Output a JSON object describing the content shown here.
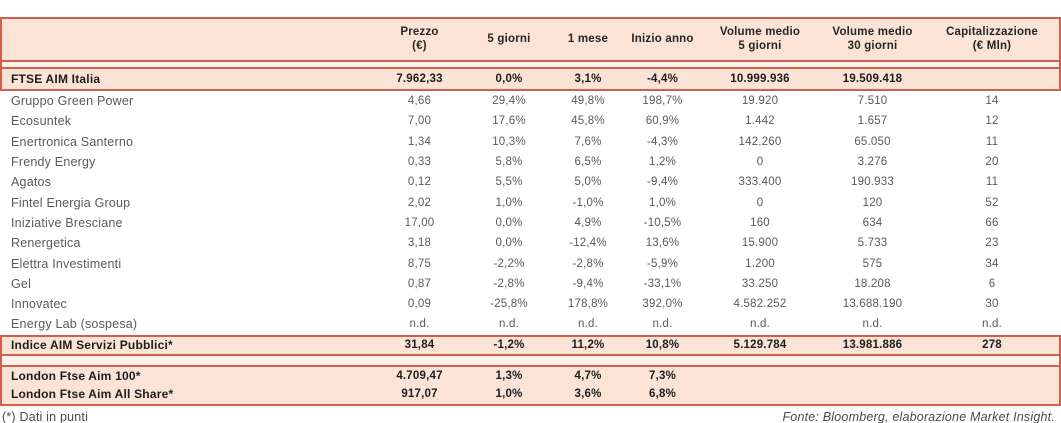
{
  "colors": {
    "border_red": "#d0604d",
    "section_peach": "#fbe4d5",
    "spacer_peach": "#fdf2ea",
    "text_dark": "#1d1d1d",
    "text_gray": "#5a5a5a"
  },
  "table": {
    "columns": [
      {
        "key": "name",
        "lines": []
      },
      {
        "key": "prezzo",
        "lines": [
          "Prezzo",
          "(€)"
        ]
      },
      {
        "key": "cinque-giorni",
        "lines": [
          "5 giorni"
        ]
      },
      {
        "key": "un-mese",
        "lines": [
          "1 mese"
        ]
      },
      {
        "key": "inizio-anno",
        "lines": [
          "Inizio anno"
        ]
      },
      {
        "key": "volume-medio-5-giorni",
        "lines": [
          "Volume medio",
          "5 giorni"
        ]
      },
      {
        "key": "volume-medio-30-giorni",
        "lines": [
          "Volume medio",
          "30 giorni"
        ]
      },
      {
        "key": "capitalizzazione",
        "lines": [
          "Capitalizzazione",
          "(€ Mln)"
        ]
      }
    ],
    "ftse_aim_row": {
      "name": "FTSE AIM Italia",
      "values": [
        "7.962,33",
        "0,0%",
        "3,1%",
        "-4,4%",
        "10.999.936",
        "19.509.418",
        ""
      ]
    },
    "rows": [
      {
        "name": "Gruppo Green Power",
        "values": [
          "4,66",
          "29,4%",
          "49,8%",
          "198,7%",
          "19.920",
          "7.510",
          "14"
        ]
      },
      {
        "name": "Ecosuntek",
        "values": [
          "7,00",
          "17,6%",
          "45,8%",
          "60,9%",
          "1.442",
          "1.657",
          "12"
        ]
      },
      {
        "name": "Enertronica Santerno",
        "values": [
          "1,34",
          "10,3%",
          "7,6%",
          "-4,3%",
          "142.260",
          "65.050",
          "11"
        ]
      },
      {
        "name": "Frendy Energy",
        "values": [
          "0,33",
          "5,8%",
          "6,5%",
          "1,2%",
          "0",
          "3.276",
          "20"
        ]
      },
      {
        "name": "Agatos",
        "values": [
          "0,12",
          "5,5%",
          "5,0%",
          "-9,4%",
          "333.400",
          "190.933",
          "11"
        ]
      },
      {
        "name": "Fintel Energia Group",
        "values": [
          "2,02",
          "1,0%",
          "-1,0%",
          "1,0%",
          "0",
          "120",
          "52"
        ]
      },
      {
        "name": "Iniziative Bresciane",
        "values": [
          "17,00",
          "0,0%",
          "4,9%",
          "-10,5%",
          "160",
          "634",
          "66"
        ]
      },
      {
        "name": "Renergetica",
        "values": [
          "3,18",
          "0,0%",
          "-12,4%",
          "13,6%",
          "15.900",
          "5.733",
          "23"
        ]
      },
      {
        "name": "Elettra Investimenti",
        "values": [
          "8,75",
          "-2,2%",
          "-2,8%",
          "-5,9%",
          "1.200",
          "575",
          "34"
        ]
      },
      {
        "name": "Gel",
        "values": [
          "0,87",
          "-2,8%",
          "-9,4%",
          "-33,1%",
          "33.250",
          "18.208",
          "6"
        ]
      },
      {
        "name": "Innovatec",
        "values": [
          "0,09",
          "-25,8%",
          "178,8%",
          "392,0%",
          "4.582.252",
          "13.688.190",
          "30"
        ]
      },
      {
        "name": "Energy Lab (sospesa)",
        "values": [
          "n.d.",
          "n.d.",
          "n.d.",
          "n.d.",
          "n.d.",
          "n.d.",
          "n.d."
        ]
      }
    ],
    "aim_servizi_row": {
      "name": "Indice AIM Servizi Pubblici*",
      "values": [
        "31,84",
        "-1,2%",
        "11,2%",
        "10,8%",
        "5.129.784",
        "13.981.886",
        "278"
      ]
    },
    "london_rows": [
      {
        "name": "London Ftse Aim 100*",
        "values": [
          "4.709,47",
          "1,3%",
          "4,7%",
          "7,3%",
          "",
          "",
          ""
        ]
      },
      {
        "name": "London Ftse Aim All Share*",
        "values": [
          "917,07",
          "1,0%",
          "3,6%",
          "6,8%",
          "",
          "",
          ""
        ]
      }
    ],
    "footnote": "(*) Dati in punti",
    "source": "Fonte: Bloomberg, elaborazione Market Insight."
  }
}
